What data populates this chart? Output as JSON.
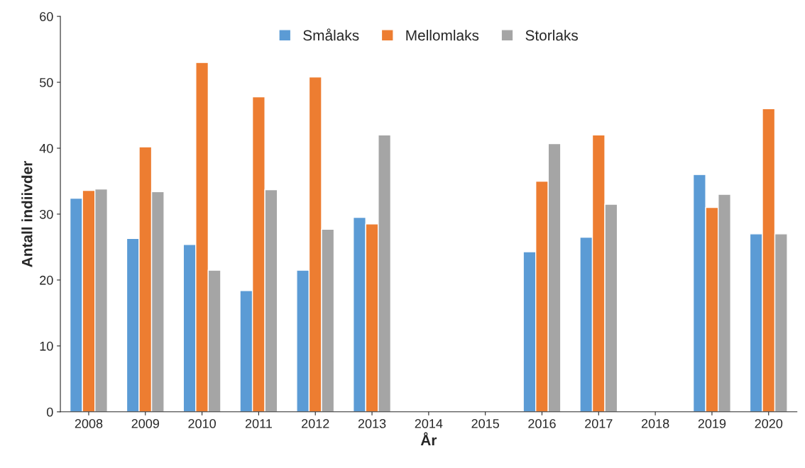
{
  "chart_data": {
    "type": "bar",
    "xlabel": "År",
    "ylabel": "Antall indiivder",
    "categories": [
      "2008",
      "2009",
      "2010",
      "2011",
      "2012",
      "2013",
      "2014",
      "2015",
      "2016",
      "2017",
      "2018",
      "2019",
      "2020"
    ],
    "series": [
      {
        "name": "Smålaks",
        "color": "#5b9bd5",
        "values": [
          32.4,
          26.3,
          25.4,
          18.4,
          21.5,
          29.5,
          null,
          null,
          24.3,
          26.5,
          null,
          36.0,
          27.0
        ]
      },
      {
        "name": "Mellomlaks",
        "color": "#ed7d31",
        "values": [
          33.6,
          40.2,
          53.0,
          47.8,
          50.8,
          28.5,
          null,
          null,
          35.0,
          42.0,
          null,
          31.0,
          46.0
        ]
      },
      {
        "name": "Storlaks",
        "color": "#a5a5a5",
        "values": [
          33.8,
          33.4,
          21.5,
          33.7,
          27.7,
          42.0,
          null,
          null,
          40.7,
          31.5,
          null,
          33.0,
          27.0
        ]
      }
    ],
    "ylim": [
      0,
      60
    ],
    "yticks": [
      0,
      10,
      20,
      30,
      40,
      50,
      60
    ],
    "grid": false,
    "legend": "top"
  }
}
